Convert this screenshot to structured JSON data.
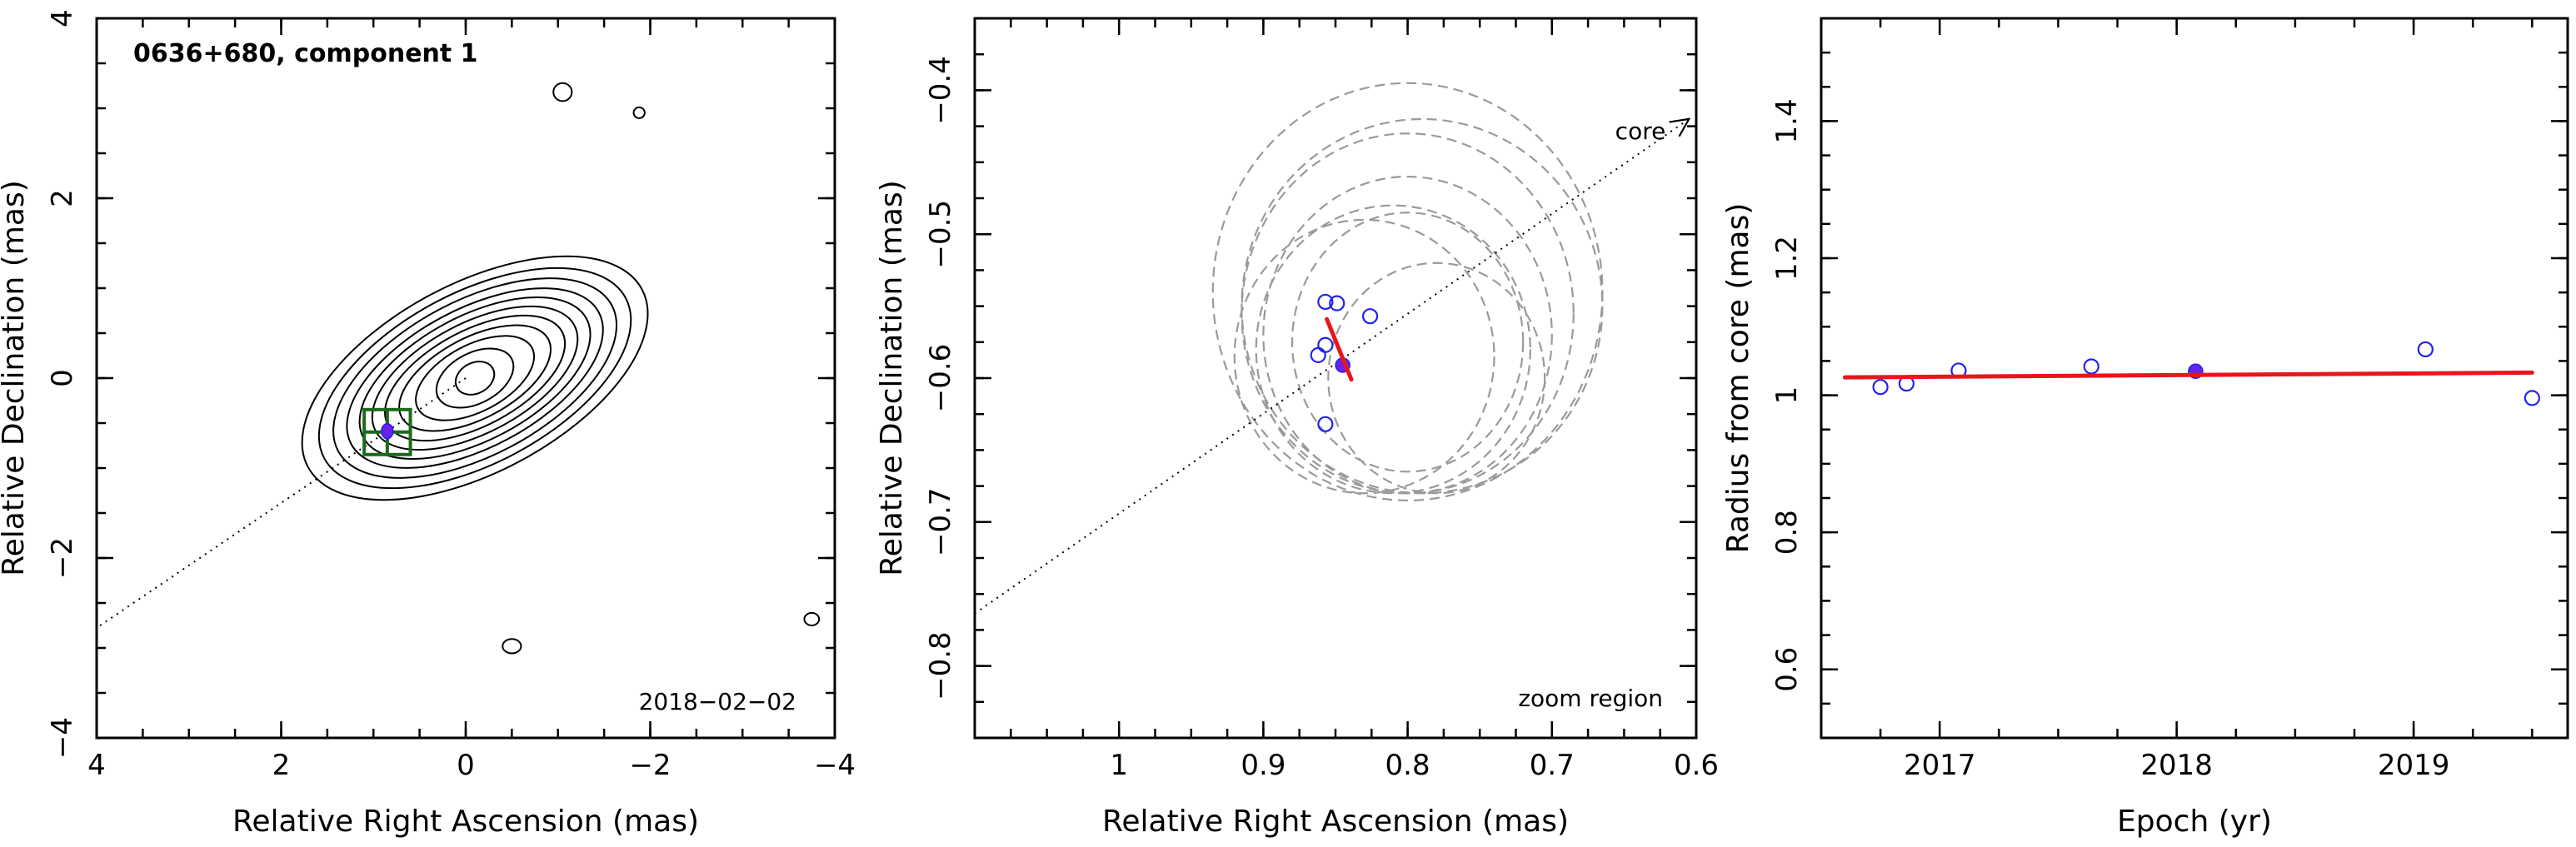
{
  "chart_data": [
    {
      "type": "contour",
      "title": "0636+680, component 1",
      "epoch_label": "2018−02−02",
      "xlabel": "Relative Right Ascension (mas)",
      "ylabel": "Relative Declination (mas)",
      "xlim": [
        4,
        -4
      ],
      "ylim": [
        -4,
        4
      ],
      "x_ticks": [
        {
          "value": 4,
          "label": "4"
        },
        {
          "value": 2,
          "label": "2"
        },
        {
          "value": 0,
          "label": "0"
        },
        {
          "value": -2,
          "label": "−2"
        },
        {
          "value": -4,
          "label": "−4"
        }
      ],
      "y_ticks": [
        {
          "value": -4,
          "label": "−4"
        },
        {
          "value": -2,
          "label": "−2"
        },
        {
          "value": 0,
          "label": "0"
        },
        {
          "value": 2,
          "label": "2"
        },
        {
          "value": 4,
          "label": "4"
        }
      ],
      "component": {
        "x": 0.85,
        "y": -0.59
      },
      "zoom_box": {
        "x_range": [
          0.6,
          1.1
        ],
        "y_range": [
          -0.85,
          -0.35
        ]
      },
      "contours": {
        "center": {
          "x": -0.1,
          "y": 0.0
        },
        "tilt_deg": 28,
        "levels": [
          {
            "semi_major": 2.05,
            "semi_minor": 1.05
          },
          {
            "semi_major": 1.85,
            "semi_minor": 0.95
          },
          {
            "semi_major": 1.68,
            "semi_minor": 0.86
          },
          {
            "semi_major": 1.52,
            "semi_minor": 0.77
          },
          {
            "semi_major": 1.37,
            "semi_minor": 0.69
          },
          {
            "semi_major": 1.22,
            "semi_minor": 0.61
          },
          {
            "semi_major": 1.07,
            "semi_minor": 0.53
          },
          {
            "semi_major": 0.9,
            "semi_minor": 0.45
          },
          {
            "semi_major": 0.7,
            "semi_minor": 0.37
          },
          {
            "semi_major": 0.45,
            "semi_minor": 0.28
          },
          {
            "semi_major": 0.22,
            "semi_minor": 0.17
          }
        ],
        "islands": [
          {
            "x": -1.05,
            "y": 3.18,
            "rx": 0.1,
            "ry": 0.1
          },
          {
            "x": -1.88,
            "y": 2.95,
            "rx": 0.06,
            "ry": 0.06
          },
          {
            "x": -0.5,
            "y": -2.98,
            "rx": 0.1,
            "ry": 0.08
          },
          {
            "x": -3.75,
            "y": -2.68,
            "rx": 0.08,
            "ry": 0.07
          }
        ]
      }
    },
    {
      "type": "scatter",
      "annotation_core": "core",
      "annotation_zoom": "zoom region",
      "xlabel": "Relative Right Ascension (mas)",
      "ylabel": "Relative Declination (mas)",
      "xlim": [
        1.1,
        0.6
      ],
      "ylim": [
        -0.85,
        -0.35
      ],
      "x_ticks": [
        {
          "value": 1.0,
          "label": "1"
        },
        {
          "value": 0.9,
          "label": "0.9"
        },
        {
          "value": 0.8,
          "label": "0.8"
        },
        {
          "value": 0.7,
          "label": "0.7"
        },
        {
          "value": 0.6,
          "label": "0.6"
        }
      ],
      "y_ticks": [
        {
          "value": -0.8,
          "label": "−0.8"
        },
        {
          "value": -0.7,
          "label": "−0.7"
        },
        {
          "value": -0.6,
          "label": "−0.6"
        },
        {
          "value": -0.5,
          "label": "−0.5"
        },
        {
          "value": -0.4,
          "label": "−0.4"
        }
      ],
      "open_points": [
        {
          "x": 0.857,
          "y": -0.547
        },
        {
          "x": 0.849,
          "y": -0.548
        },
        {
          "x": 0.826,
          "y": -0.557
        },
        {
          "x": 0.857,
          "y": -0.577
        },
        {
          "x": 0.862,
          "y": -0.584
        },
        {
          "x": 0.857,
          "y": -0.632
        }
      ],
      "filled_point": {
        "x": 0.845,
        "y": -0.591
      },
      "fit_segment": [
        {
          "x": 0.856,
          "y": -0.559
        },
        {
          "x": 0.839,
          "y": -0.601
        }
      ],
      "ghost_ellipses": [
        {
          "x": 0.8,
          "y": -0.54,
          "rx": 0.135,
          "ry": 0.145
        },
        {
          "x": 0.79,
          "y": -0.55,
          "rx": 0.125,
          "ry": 0.13
        },
        {
          "x": 0.8,
          "y": -0.555,
          "rx": 0.115,
          "ry": 0.125
        },
        {
          "x": 0.8,
          "y": -0.57,
          "rx": 0.1,
          "ry": 0.11
        },
        {
          "x": 0.81,
          "y": -0.58,
          "rx": 0.095,
          "ry": 0.1
        },
        {
          "x": 0.83,
          "y": -0.585,
          "rx": 0.09,
          "ry": 0.095
        },
        {
          "x": 0.8,
          "y": -0.575,
          "rx": 0.08,
          "ry": 0.09
        },
        {
          "x": 0.78,
          "y": -0.6,
          "rx": 0.075,
          "ry": 0.08
        }
      ]
    },
    {
      "type": "scatter",
      "xlabel": "Epoch (yr)",
      "ylabel": "Radius from core (mas)",
      "xlim": [
        2016.5,
        2019.65
      ],
      "ylim": [
        0.5,
        1.55
      ],
      "x_ticks": [
        {
          "value": 2017,
          "label": "2017"
        },
        {
          "value": 2018,
          "label": "2018"
        },
        {
          "value": 2019,
          "label": "2019"
        }
      ],
      "y_ticks": [
        {
          "value": 0.6,
          "label": "0.6"
        },
        {
          "value": 0.8,
          "label": "0.8"
        },
        {
          "value": 1.0,
          "label": "1"
        },
        {
          "value": 1.2,
          "label": "1.2"
        },
        {
          "value": 1.4,
          "label": "1.4"
        }
      ],
      "open_points": [
        {
          "x": 2016.75,
          "y": 1.012
        },
        {
          "x": 2016.86,
          "y": 1.017
        },
        {
          "x": 2017.08,
          "y": 1.036
        },
        {
          "x": 2017.64,
          "y": 1.042
        },
        {
          "x": 2019.05,
          "y": 1.067
        },
        {
          "x": 2019.5,
          "y": 0.996
        }
      ],
      "filled_point": {
        "x": 2018.08,
        "y": 1.035
      },
      "fit_line": [
        {
          "x": 2016.6,
          "y": 1.026
        },
        {
          "x": 2019.5,
          "y": 1.033
        }
      ]
    }
  ]
}
